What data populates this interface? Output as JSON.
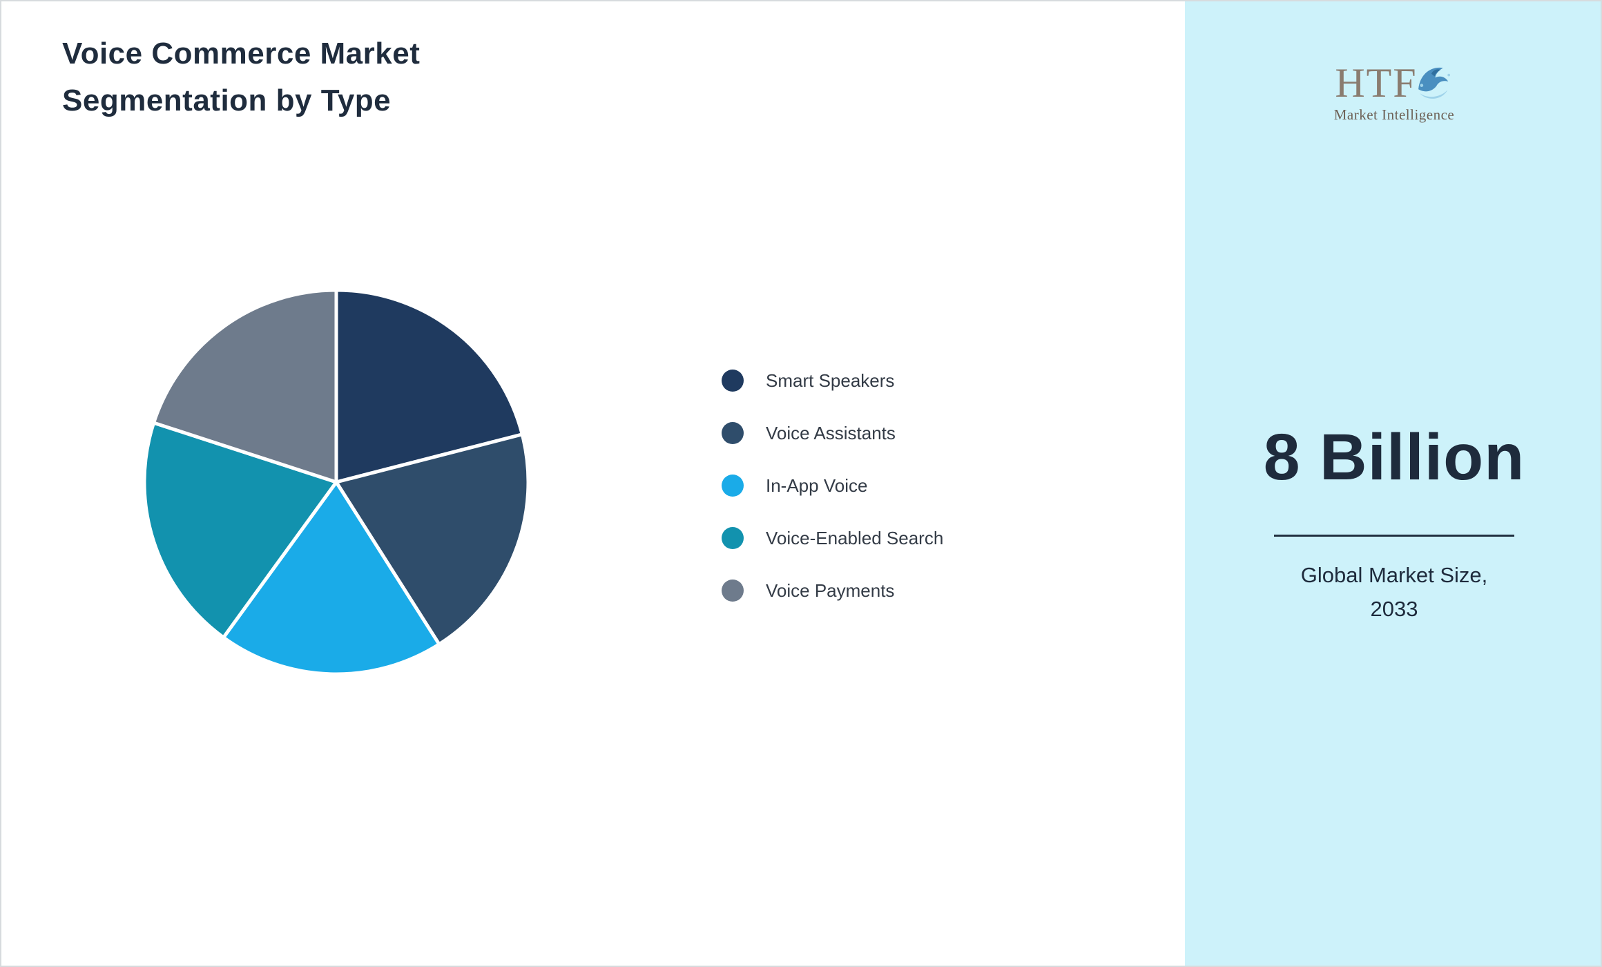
{
  "header": {
    "title_line1": "Voice Commerce Market",
    "title_line2": "Segmentation by Type"
  },
  "chart_data": {
    "type": "pie",
    "title": "Voice Commerce Market Segmentation by Type",
    "categories": [
      "Smart Speakers",
      "Voice Assistants",
      "In-App Voice",
      "Voice-Enabled Search",
      "Voice Payments"
    ],
    "values": [
      21,
      20,
      19,
      20,
      20
    ],
    "colors": [
      "#1f3a5f",
      "#2f4d6b",
      "#1aabe8",
      "#1292ae",
      "#6e7b8c"
    ],
    "start_angle_deg": 0,
    "direction": "clockwise",
    "legend_position": "right",
    "slice_border_color": "#ffffff"
  },
  "sidebar": {
    "background": "#cdf2fa",
    "logo_text": "HTF",
    "logo_subtext": "Market Intelligence",
    "market_size_value": "8 Billion",
    "market_size_label_line1": "Global Market Size,",
    "market_size_label_line2": "2033"
  }
}
